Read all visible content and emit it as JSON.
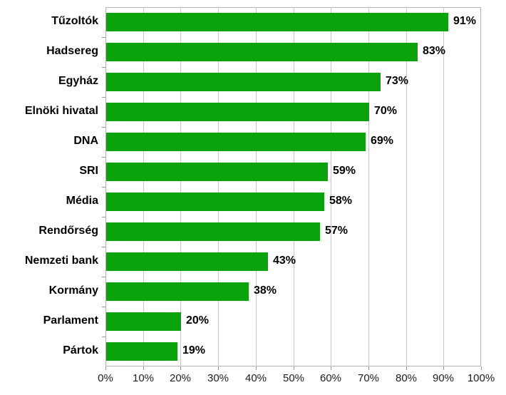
{
  "chart_data": {
    "type": "bar",
    "orientation": "horizontal",
    "title": "",
    "xlabel": "",
    "ylabel": "",
    "categories": [
      "Tűzoltók",
      "Hadsereg",
      "Egyház",
      "Elnöki hivatal",
      "DNA",
      "SRI",
      "Média",
      "Rendőrség",
      "Nemzeti bank",
      "Kormány",
      "Parlament",
      "Pártok"
    ],
    "values": [
      91,
      83,
      73,
      70,
      69,
      59,
      58,
      57,
      43,
      38,
      20,
      19
    ],
    "value_labels": [
      "91%",
      "83%",
      "73%",
      "70%",
      "69%",
      "59%",
      "58%",
      "57%",
      "43%",
      "38%",
      "20%",
      "19%"
    ],
    "x_ticks": [
      "0%",
      "10%",
      "20%",
      "30%",
      "40%",
      "50%",
      "60%",
      "70%",
      "80%",
      "90%",
      "100%"
    ],
    "x_tick_values": [
      0,
      10,
      20,
      30,
      40,
      50,
      60,
      70,
      80,
      90,
      100
    ],
    "xlim": [
      0,
      100
    ],
    "grid": true,
    "legend": "none",
    "colors": {
      "bar": "#0ba30b",
      "gridline": "#c9c9c9",
      "plot_border": "#b3b3b3",
      "axis_tick": "#9a9a9a",
      "label_text": "#000000",
      "axis_text": "#1c1c1c",
      "background": "#ffffff"
    }
  }
}
